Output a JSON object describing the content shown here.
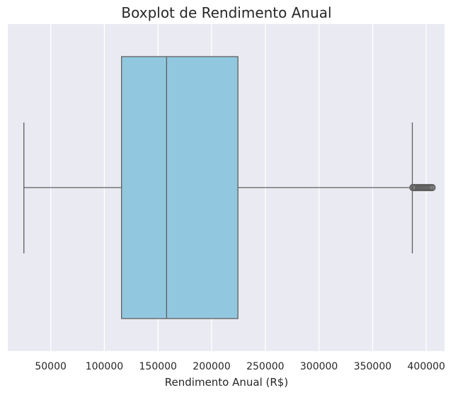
{
  "chart_data": {
    "type": "boxplot",
    "title": "Boxplot de Rendimento Anual",
    "xlabel": "Rendimento Anual (R$)",
    "ylabel": "",
    "xlim": [
      10000,
      417000
    ],
    "xticks": [
      50000,
      100000,
      150000,
      200000,
      250000,
      300000,
      350000,
      400000
    ],
    "xtick_labels": [
      "50000",
      "100000",
      "150000",
      "200000",
      "250000",
      "300000",
      "350000",
      "400000"
    ],
    "grid": true,
    "box": {
      "whisker_low": 25000,
      "q1": 116000,
      "median": 158000,
      "q3": 224500,
      "whisker_high": 387000,
      "outliers": [
        387500,
        388500,
        389500,
        390500,
        391500,
        392500,
        393500,
        394500,
        395500,
        396500,
        397500,
        398500,
        399500,
        400500,
        401500,
        402500,
        403500,
        404500,
        405500
      ]
    },
    "colors": {
      "box_fill": "#92c8df",
      "line": "#5f5f5f",
      "background": "#eaeaf2",
      "grid": "#ffffff"
    }
  }
}
